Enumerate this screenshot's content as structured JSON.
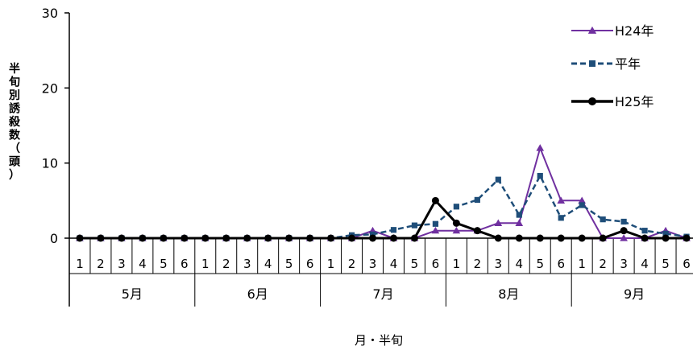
{
  "chart_data": {
    "type": "line",
    "xlabel": "月・半旬",
    "ylabel": "半旬別誘殺数（頭）",
    "ylim": [
      0,
      30
    ],
    "yticks": [
      0,
      10,
      20,
      30
    ],
    "grid": false,
    "legend_position": "top-right",
    "months": [
      "5月",
      "6月",
      "7月",
      "8月",
      "9月"
    ],
    "periods": [
      "1",
      "2",
      "3",
      "4",
      "5",
      "6"
    ],
    "series": [
      {
        "name": "H24年",
        "color": "#7030a0",
        "style": "solid",
        "marker": "triangle",
        "values": [
          0,
          0,
          0,
          0,
          0,
          0,
          0,
          0,
          0,
          0,
          0,
          0,
          0,
          0,
          1,
          0,
          0,
          1,
          1,
          1,
          2,
          2,
          12,
          5,
          5,
          0,
          0,
          0,
          1,
          0
        ]
      },
      {
        "name": "平年",
        "color": "#1f4e79",
        "style": "dashed",
        "marker": "square",
        "values": [
          0,
          0,
          0,
          0,
          0,
          0,
          0,
          0,
          0,
          0,
          0,
          0,
          0,
          0.4,
          0.5,
          1.1,
          1.7,
          1.9,
          4.2,
          5.1,
          7.8,
          3.1,
          8.3,
          2.7,
          4.4,
          2.5,
          2.2,
          1.0,
          0.6,
          0.2
        ]
      },
      {
        "name": "H25年",
        "color": "#000000",
        "style": "solid",
        "marker": "circle",
        "values": [
          0,
          0,
          0,
          0,
          0,
          0,
          0,
          0,
          0,
          0,
          0,
          0,
          0,
          0,
          0,
          0,
          0,
          5,
          2,
          1,
          0,
          0,
          0,
          0,
          0,
          0,
          1,
          0,
          0,
          0
        ]
      }
    ]
  }
}
